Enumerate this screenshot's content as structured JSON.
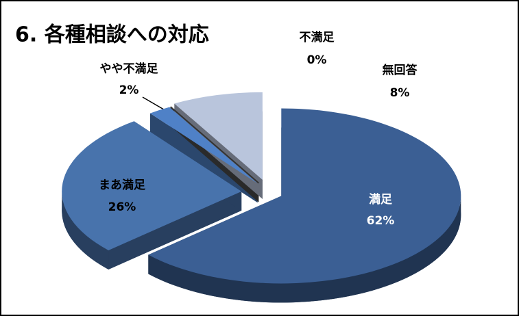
{
  "chart_data": {
    "type": "pie3d",
    "title": "6. 各種相談への対応",
    "categories": [
      "満足",
      "まあ満足",
      "やや不満足",
      "不満足",
      "無回答"
    ],
    "values": [
      62,
      26,
      2,
      0,
      8
    ],
    "value_labels": [
      "62%",
      "26%",
      "2%",
      "0%",
      "8%"
    ],
    "colors": [
      "#3b5f94",
      "#4873ac",
      "#4f81c7",
      "#4d4d4d",
      "#b9c5dc"
    ]
  }
}
